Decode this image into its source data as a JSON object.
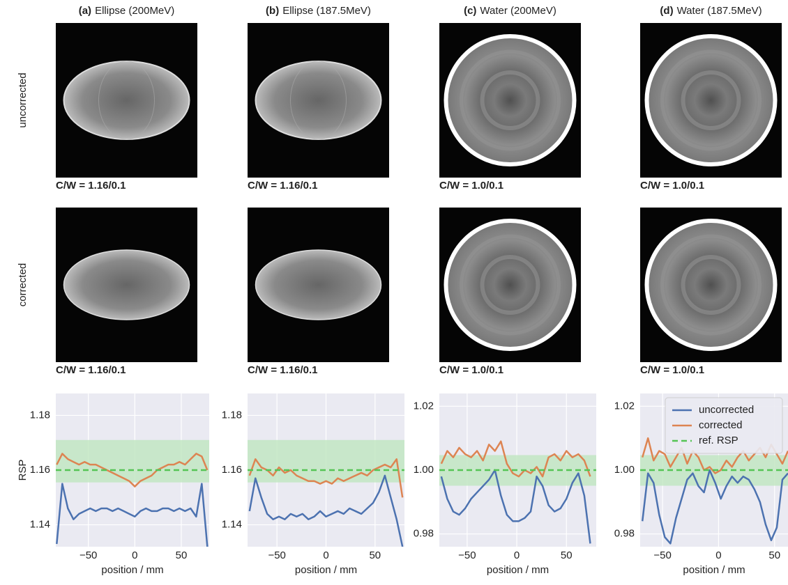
{
  "row_labels": [
    "uncorrected",
    "corrected"
  ],
  "panels": [
    {
      "label": "(a)",
      "title": "Ellipse (200MeV)",
      "captions": [
        "C/W = 1.16/0.1",
        "C/W = 1.16/0.1"
      ]
    },
    {
      "label": "(b)",
      "title": "Ellipse (187.5MeV)",
      "captions": [
        "C/W = 1.16/0.1",
        "C/W = 1.16/0.1"
      ]
    },
    {
      "label": "(c)",
      "title": "Water (200MeV)",
      "captions": [
        "C/W = 1.0/0.1",
        "C/W = 1.0/0.1"
      ]
    },
    {
      "label": "(d)",
      "title": "Water (187.5MeV)",
      "captions": [
        "C/W = 1.0/0.1",
        "C/W = 1.0/0.1"
      ]
    }
  ],
  "chart_data": [
    {
      "type": "line",
      "xlabel": "position / mm",
      "ylabel": "RSP",
      "grid": true,
      "xlim": [
        -85,
        80
      ],
      "xticks": [
        {
          "value": -50,
          "label": "−50"
        },
        0,
        50
      ],
      "ylim": [
        1.132,
        1.188
      ],
      "yticks": [
        1.14,
        1.16,
        1.18
      ],
      "band": {
        "range": [
          1.1555,
          1.171
        ],
        "color": "#bfe6bf"
      },
      "reference": {
        "value": 1.16,
        "color": "#55c455"
      },
      "x": [
        -84,
        -78,
        -72,
        -66,
        -60,
        -54,
        -48,
        -42,
        -36,
        -30,
        -24,
        -18,
        -12,
        -6,
        0,
        6,
        12,
        18,
        24,
        30,
        36,
        42,
        48,
        54,
        60,
        66,
        72,
        78
      ],
      "series": [
        {
          "color": "#4c72b0",
          "values": [
            1.133,
            1.155,
            1.146,
            1.142,
            1.144,
            1.145,
            1.146,
            1.145,
            1.146,
            1.146,
            1.145,
            1.146,
            1.145,
            1.144,
            1.143,
            1.145,
            1.146,
            1.145,
            1.145,
            1.146,
            1.146,
            1.145,
            1.146,
            1.145,
            1.146,
            1.143,
            1.155,
            1.132
          ]
        },
        {
          "color": "#dd8452",
          "values": [
            1.162,
            1.166,
            1.164,
            1.163,
            1.162,
            1.163,
            1.162,
            1.162,
            1.161,
            1.16,
            1.159,
            1.158,
            1.157,
            1.156,
            1.154,
            1.156,
            1.157,
            1.158,
            1.16,
            1.161,
            1.162,
            1.162,
            1.163,
            1.162,
            1.164,
            1.166,
            1.165,
            1.16
          ]
        }
      ]
    },
    {
      "type": "line",
      "xlabel": "position / mm",
      "grid": true,
      "xlim": [
        -80,
        80
      ],
      "xticks": [
        {
          "value": -50,
          "label": "−50"
        },
        0,
        50
      ],
      "ylim": [
        1.132,
        1.188
      ],
      "yticks": [
        1.14,
        1.16,
        1.18
      ],
      "band": {
        "range": [
          1.1555,
          1.171
        ],
        "color": "#bfe6bf"
      },
      "reference": {
        "value": 1.16,
        "color": "#55c455"
      },
      "x": [
        -78,
        -72,
        -66,
        -60,
        -54,
        -48,
        -42,
        -36,
        -30,
        -24,
        -18,
        -12,
        -6,
        0,
        6,
        12,
        18,
        24,
        30,
        36,
        42,
        48,
        54,
        60,
        66,
        72,
        78
      ],
      "series": [
        {
          "color": "#4c72b0",
          "values": [
            1.145,
            1.157,
            1.15,
            1.144,
            1.142,
            1.143,
            1.142,
            1.144,
            1.143,
            1.144,
            1.142,
            1.143,
            1.145,
            1.143,
            1.144,
            1.145,
            1.144,
            1.146,
            1.145,
            1.144,
            1.146,
            1.148,
            1.152,
            1.158,
            1.15,
            1.142,
            1.132
          ]
        },
        {
          "color": "#dd8452",
          "values": [
            1.158,
            1.164,
            1.161,
            1.16,
            1.158,
            1.161,
            1.159,
            1.16,
            1.158,
            1.157,
            1.156,
            1.156,
            1.155,
            1.156,
            1.155,
            1.157,
            1.156,
            1.157,
            1.158,
            1.159,
            1.158,
            1.16,
            1.161,
            1.162,
            1.161,
            1.164,
            1.15
          ]
        }
      ]
    },
    {
      "type": "line",
      "xlabel": "position / mm",
      "grid": true,
      "xlim": [
        -78,
        80
      ],
      "xticks": [
        {
          "value": -50,
          "label": "−50"
        },
        0,
        50
      ],
      "ylim": [
        0.976,
        1.024
      ],
      "yticks": [
        0.98,
        {
          "value": 1,
          "label": "1.00"
        },
        1.02
      ],
      "band": {
        "range": [
          0.9951,
          1.0047
        ],
        "color": "#bfe6bf"
      },
      "reference": {
        "value": 1,
        "color": "#55c455"
      },
      "x": [
        -76,
        -70,
        -64,
        -58,
        -52,
        -46,
        -40,
        -34,
        -28,
        -22,
        -16,
        -10,
        -4,
        2,
        8,
        14,
        20,
        26,
        32,
        38,
        44,
        50,
        56,
        62,
        68,
        74
      ],
      "series": [
        {
          "color": "#4c72b0",
          "values": [
            0.998,
            0.991,
            0.987,
            0.986,
            0.988,
            0.991,
            0.993,
            0.995,
            0.997,
            1.0,
            0.992,
            0.986,
            0.984,
            0.984,
            0.985,
            0.987,
            0.998,
            0.995,
            0.989,
            0.987,
            0.988,
            0.991,
            0.996,
            0.999,
            0.992,
            0.977
          ]
        },
        {
          "color": "#dd8452",
          "values": [
            1.002,
            1.006,
            1.004,
            1.007,
            1.005,
            1.004,
            1.006,
            1.003,
            1.008,
            1.006,
            1.009,
            1.002,
            0.999,
            0.998,
            1.0,
            0.999,
            1.001,
            0.998,
            1.004,
            1.005,
            1.003,
            1.006,
            1.004,
            1.005,
            1.003,
            0.998
          ]
        }
      ]
    },
    {
      "type": "line",
      "xlabel": "position / mm",
      "grid": true,
      "legend": "upper right",
      "xlim": [
        -70,
        62
      ],
      "xticks": [
        {
          "value": -50,
          "label": "−50"
        },
        0,
        50
      ],
      "ylim": [
        0.976,
        1.024
      ],
      "yticks": [
        0.98,
        {
          "value": 1,
          "label": "1.00"
        },
        1.02
      ],
      "band": {
        "range": [
          0.9951,
          1.0047
        ],
        "color": "#bfe6bf"
      },
      "reference": {
        "name": "ref. RSP",
        "value": 1,
        "color": "#55c455"
      },
      "x": [
        -68,
        -63,
        -58,
        -53,
        -48,
        -43,
        -38,
        -33,
        -28,
        -23,
        -18,
        -13,
        -8,
        -3,
        2,
        7,
        12,
        17,
        22,
        27,
        32,
        37,
        42,
        47,
        52,
        57,
        62
      ],
      "series": [
        {
          "name": "uncorrected",
          "color": "#4c72b0",
          "values": [
            0.984,
            0.999,
            0.996,
            0.986,
            0.979,
            0.977,
            0.985,
            0.991,
            0.997,
            0.999,
            0.995,
            0.993,
            1.0,
            0.996,
            0.991,
            0.995,
            0.998,
            0.996,
            0.998,
            0.997,
            0.994,
            0.99,
            0.983,
            0.978,
            0.982,
            0.997,
            0.999
          ]
        },
        {
          "name": "corrected",
          "color": "#dd8452",
          "values": [
            1.004,
            1.01,
            1.003,
            1.006,
            1.005,
            1.001,
            1.004,
            1.007,
            1.002,
            1.006,
            1.004,
            1.0,
            1.001,
            0.999,
            1.0,
            1.003,
            1.001,
            1.004,
            1.006,
            1.003,
            1.005,
            1.007,
            1.004,
            1.008,
            1.005,
            1.002,
            1.006
          ]
        }
      ]
    }
  ]
}
